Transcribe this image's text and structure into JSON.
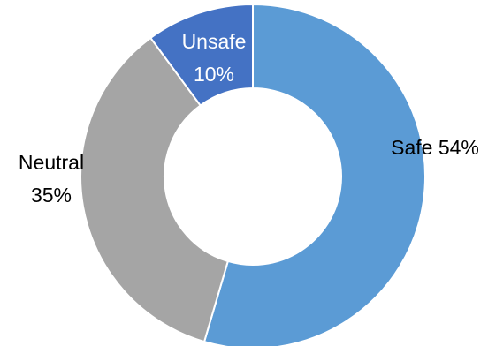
{
  "chart_data": {
    "type": "pie",
    "variant": "donut",
    "categories": [
      "Safe",
      "Neutral",
      "Unsafe"
    ],
    "values": [
      54,
      35,
      10
    ],
    "units": "%",
    "start": "top",
    "direction": "clockwise",
    "slice_labels": [
      {
        "lines": [
          "Safe 54%"
        ],
        "color": "#000000",
        "placement": "inside-right"
      },
      {
        "lines": [
          "Neutral",
          "35%"
        ],
        "color": "#000000",
        "placement": "outside-left"
      },
      {
        "lines": [
          "Unsafe",
          "10%"
        ],
        "color": "#ffffff",
        "placement": "inside-top"
      }
    ],
    "colors": [
      "#5b9bd5",
      "#a5a5a5",
      "#4472c4"
    ],
    "legend": "none",
    "title": ""
  }
}
